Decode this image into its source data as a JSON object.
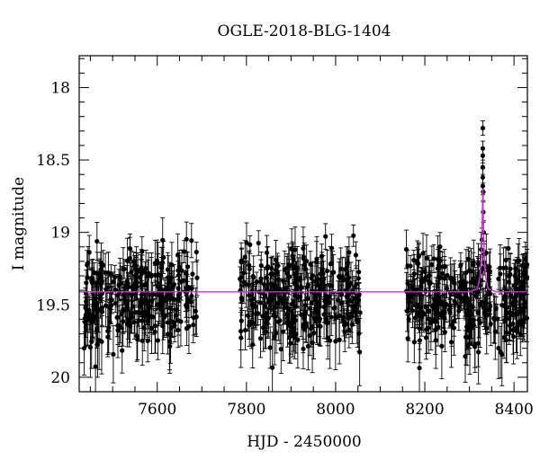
{
  "chart_data": {
    "type": "scatter",
    "title": "OGLE-2018-BLG-1404",
    "xlabel": "HJD - 2450000",
    "ylabel": "I magnitude",
    "xlim": [
      7425,
      8430
    ],
    "ylim": [
      20.1,
      17.78
    ],
    "y_inverted": true,
    "xticks": [
      7600,
      7800,
      8000,
      8200,
      8400
    ],
    "yticks": [
      18,
      18.5,
      19,
      19.5,
      20
    ],
    "ytick_labels": [
      "18",
      "18.5",
      "19",
      "19.5",
      "20"
    ],
    "grid": false,
    "marker_color": "#000000",
    "model_color": "#cc33cc",
    "seasons": [
      {
        "start": 7436,
        "end": 7690
      },
      {
        "start": 7785,
        "end": 8055
      },
      {
        "start": 8158,
        "end": 8430
      }
    ],
    "baseline_mag": 19.41,
    "model_curve": [
      {
        "x": 7425,
        "y": 19.41
      },
      {
        "x": 8300,
        "y": 19.41
      },
      {
        "x": 8318,
        "y": 19.39
      },
      {
        "x": 8324,
        "y": 19.3
      },
      {
        "x": 8327,
        "y": 19.15
      },
      {
        "x": 8329,
        "y": 18.88
      },
      {
        "x": 8330,
        "y": 18.7
      },
      {
        "x": 8331,
        "y": 18.88
      },
      {
        "x": 8333,
        "y": 19.15
      },
      {
        "x": 8336,
        "y": 19.3
      },
      {
        "x": 8342,
        "y": 19.39
      },
      {
        "x": 8360,
        "y": 19.41
      },
      {
        "x": 8430,
        "y": 19.41
      }
    ],
    "peak_points": [
      {
        "x": 8330,
        "y": 18.28,
        "err": 0.05
      },
      {
        "x": 8330,
        "y": 18.42,
        "err": 0.05
      },
      {
        "x": 8330,
        "y": 18.47,
        "err": 0.05
      },
      {
        "x": 8330,
        "y": 18.55,
        "err": 0.05
      },
      {
        "x": 8330,
        "y": 18.62,
        "err": 0.06
      },
      {
        "x": 8330,
        "y": 18.68,
        "err": 0.06
      },
      {
        "x": 8331,
        "y": 18.72,
        "err": 0.06
      },
      {
        "x": 8331,
        "y": 18.86,
        "err": 0.07
      },
      {
        "x": 8332,
        "y": 19.0,
        "err": 0.08
      },
      {
        "x": 8328,
        "y": 19.05,
        "err": 0.08
      },
      {
        "x": 8333,
        "y": 19.15,
        "err": 0.09
      }
    ]
  }
}
